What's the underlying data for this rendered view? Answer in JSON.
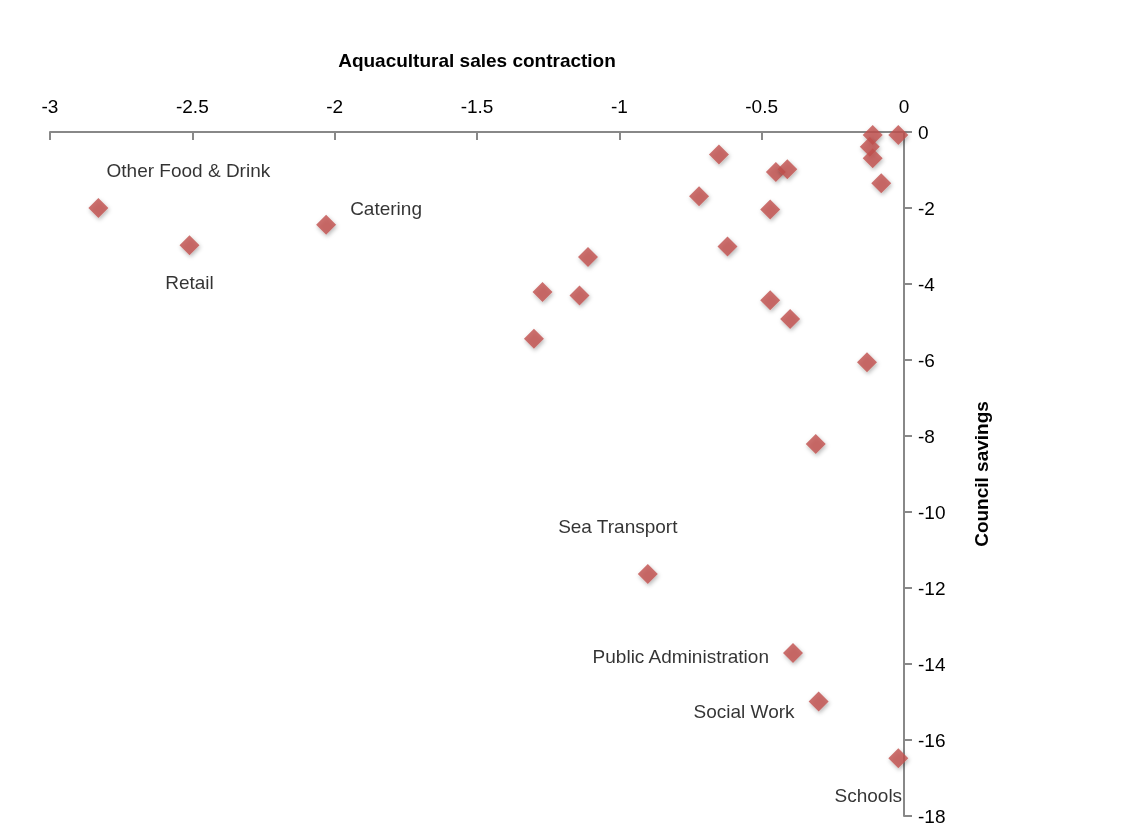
{
  "chart_data": {
    "type": "scatter",
    "xlabel": "Aquacultural sales contraction",
    "ylabel": "Council savings",
    "x": [
      -2.83,
      -2.51,
      -2.03,
      -0.9,
      -0.39,
      -0.3,
      -0.02,
      -0.65,
      -0.72,
      -0.45,
      -0.41,
      -0.47,
      -0.62,
      -1.11,
      -1.27,
      -1.14,
      -1.3,
      -0.47,
      -0.4,
      -0.13,
      -0.31,
      -0.08,
      -0.11,
      -0.12,
      -0.11,
      -0.02
    ],
    "values": [
      -2.0,
      -2.98,
      -2.44,
      -11.63,
      -13.71,
      -14.99,
      -16.48,
      -0.59,
      -1.69,
      -1.05,
      -0.98,
      -2.04,
      -3.01,
      -3.29,
      -4.21,
      -4.3,
      -5.44,
      -4.43,
      -4.92,
      -6.06,
      -8.21,
      -1.35,
      -0.08,
      -0.39,
      -0.69,
      -0.08
    ],
    "value_labels": [
      "Other Food & Drink",
      "Retail",
      "Catering",
      "Sea Transport",
      "Public Administration",
      "Social Work",
      "Schools",
      null,
      null,
      null,
      null,
      null,
      null,
      null,
      null,
      null,
      null,
      null,
      null,
      null,
      null,
      null,
      null,
      null,
      null,
      null
    ],
    "color": "#c0504d",
    "marker": "diamond",
    "grid": false,
    "xlim": [
      -3,
      0
    ],
    "xticks": [
      -3,
      -2.5,
      -2,
      -1.5,
      -1,
      -0.5,
      0
    ],
    "ylim": [
      -18,
      0
    ],
    "yticks": [
      -18,
      -16,
      -14,
      -12,
      -10,
      -8,
      -6,
      -4,
      -2,
      0
    ]
  }
}
